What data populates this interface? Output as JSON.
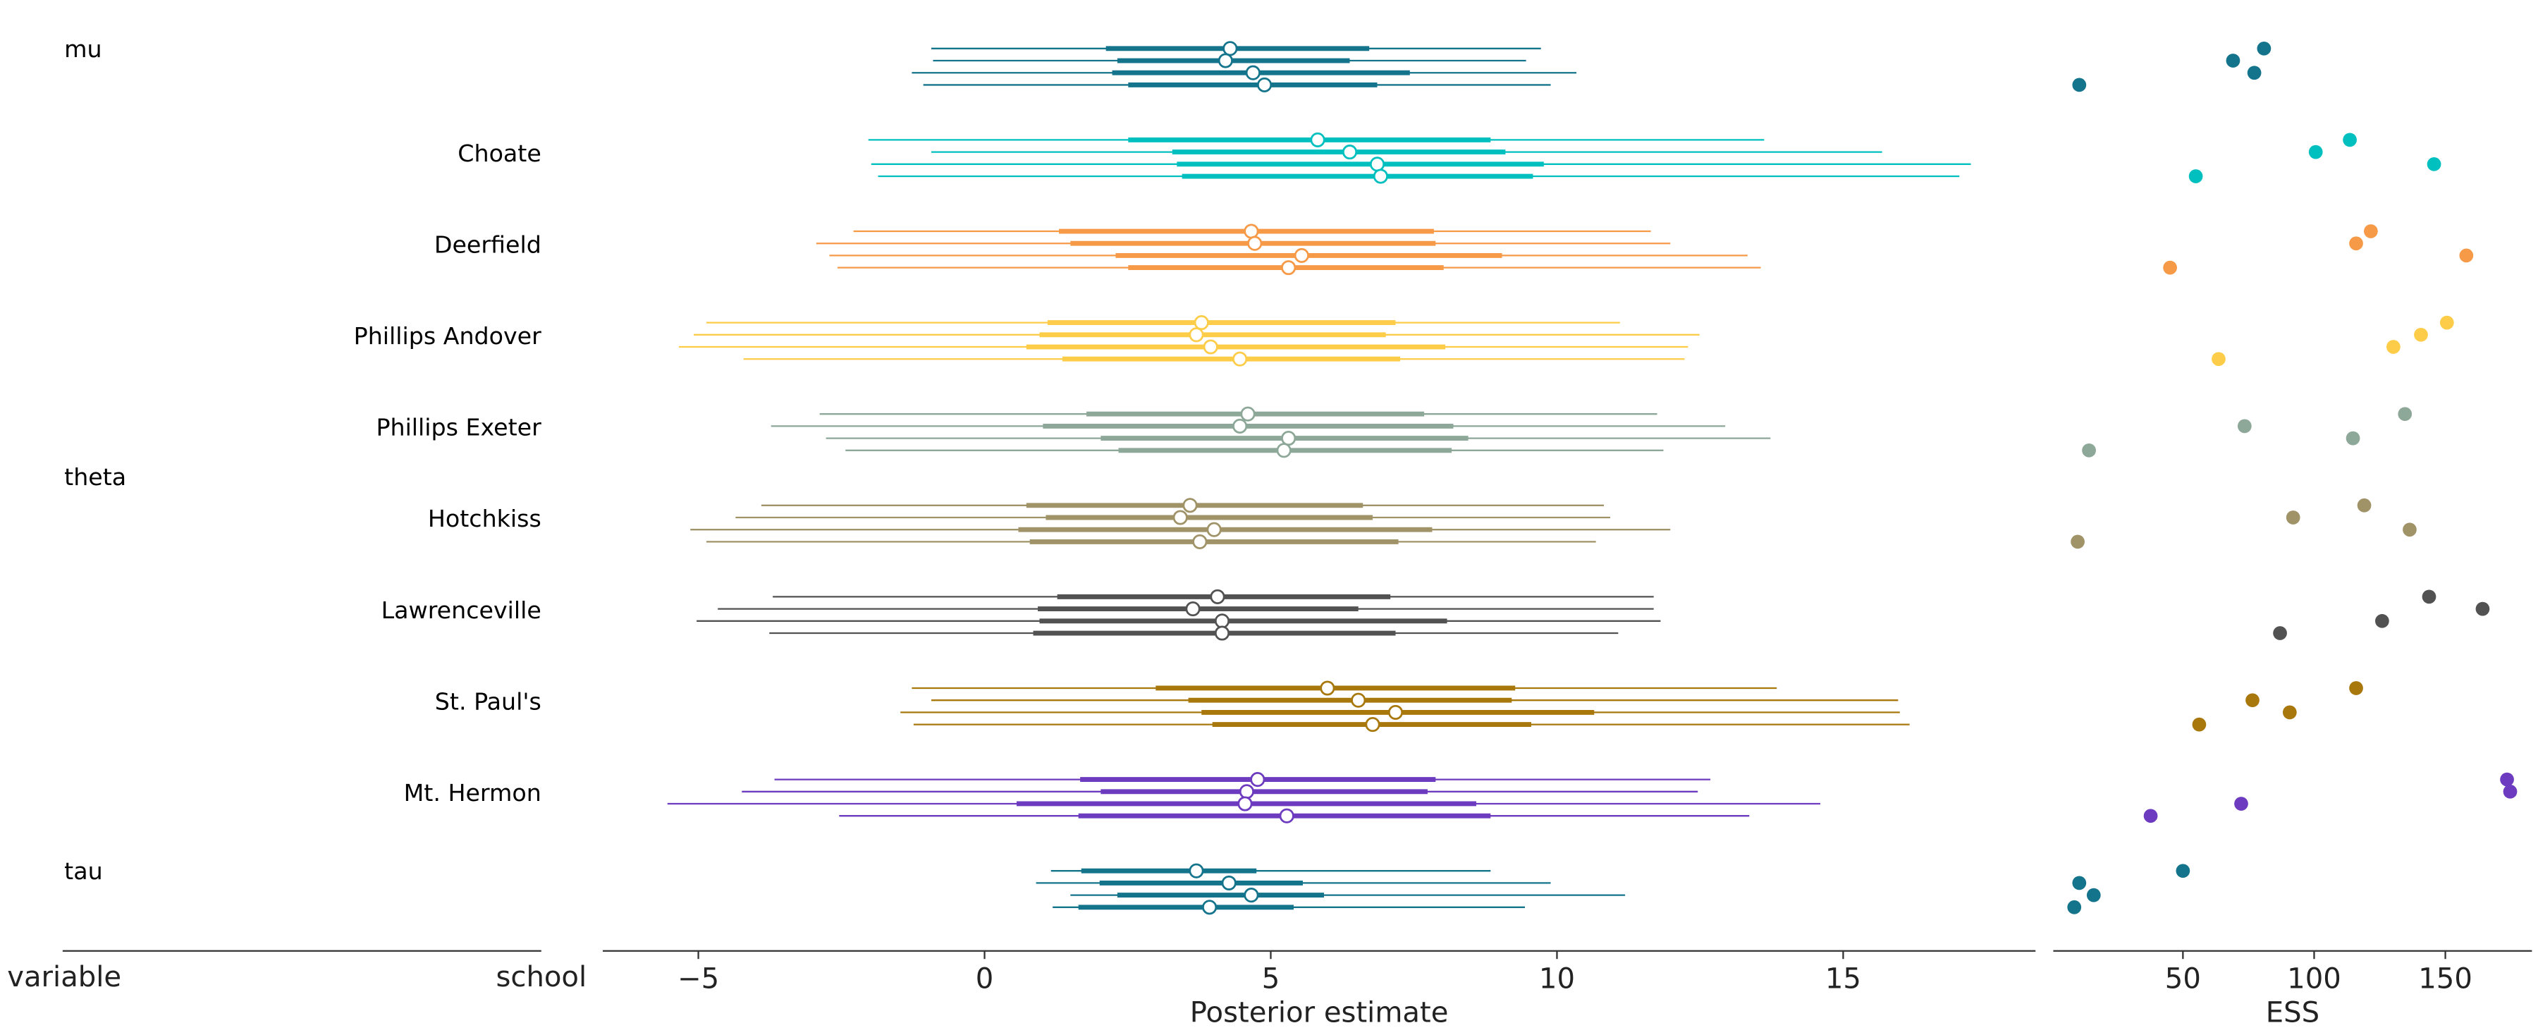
{
  "chart_data": {
    "type": "forest",
    "xlabel": "Posterior estimate",
    "ess_xlabel": "ESS",
    "label_headers": [
      "variable",
      "school"
    ],
    "xlim": [
      -6.67,
      18.36
    ],
    "xticks": [
      -5,
      0,
      5,
      10,
      15
    ],
    "ess_xlim": [
      0.6,
      183
    ],
    "ess_xticks": [
      50,
      100,
      150
    ],
    "grid": false,
    "groups": [
      {
        "variable": "mu",
        "school": "",
        "color": "#14748c",
        "chains": [
          {
            "hdi_low": -0.93,
            "iqr_low": 2.12,
            "median": 4.29,
            "iqr_high": 6.72,
            "hdi_high": 9.72,
            "ess": 80.9
          },
          {
            "hdi_low": -0.9,
            "iqr_low": 2.32,
            "median": 4.21,
            "iqr_high": 6.38,
            "hdi_high": 9.46,
            "ess": 69.1
          },
          {
            "hdi_low": -1.27,
            "iqr_low": 2.23,
            "median": 4.69,
            "iqr_high": 7.43,
            "hdi_high": 10.34,
            "ess": 77.2
          },
          {
            "hdi_low": -1.07,
            "iqr_low": 2.51,
            "median": 4.89,
            "iqr_high": 6.86,
            "hdi_high": 9.89,
            "ess": 10.5
          }
        ]
      },
      {
        "variable": "",
        "school": "Choate",
        "color": "#00bfbf",
        "chains": [
          {
            "hdi_low": -2.03,
            "iqr_low": 2.51,
            "median": 5.82,
            "iqr_high": 8.84,
            "hdi_high": 13.62,
            "ess": 113.6
          },
          {
            "hdi_low": -0.93,
            "iqr_low": 3.28,
            "median": 6.38,
            "iqr_high": 9.1,
            "hdi_high": 15.68,
            "ess": 100.6
          },
          {
            "hdi_low": -1.98,
            "iqr_low": 3.36,
            "median": 6.86,
            "iqr_high": 9.77,
            "hdi_high": 17.23,
            "ess": 145.7
          },
          {
            "hdi_low": -1.86,
            "iqr_low": 3.45,
            "median": 6.92,
            "iqr_high": 9.58,
            "hdi_high": 17.03,
            "ess": 54.9
          }
        ]
      },
      {
        "variable": "",
        "school": "Deerfield",
        "color": "#f69a48",
        "chains": [
          {
            "hdi_low": -2.29,
            "iqr_low": 1.3,
            "median": 4.66,
            "iqr_high": 7.85,
            "hdi_high": 11.64,
            "ess": 121.6
          },
          {
            "hdi_low": -2.94,
            "iqr_low": 1.5,
            "median": 4.72,
            "iqr_high": 7.88,
            "hdi_high": 11.98,
            "ess": 116.0
          },
          {
            "hdi_low": -2.71,
            "iqr_low": 2.29,
            "median": 5.54,
            "iqr_high": 9.04,
            "hdi_high": 13.33,
            "ess": 158.0
          },
          {
            "hdi_low": -2.57,
            "iqr_low": 2.51,
            "median": 5.31,
            "iqr_high": 8.02,
            "hdi_high": 13.56,
            "ess": 45.1
          }
        ]
      },
      {
        "variable": "",
        "school": "Phillips Andover",
        "color": "#fdcd49",
        "chains": [
          {
            "hdi_low": -4.86,
            "iqr_low": 1.1,
            "median": 3.79,
            "iqr_high": 7.18,
            "hdi_high": 11.1,
            "ess": 150.6
          },
          {
            "hdi_low": -5.08,
            "iqr_low": 0.96,
            "median": 3.7,
            "iqr_high": 7.01,
            "hdi_high": 12.49,
            "ess": 140.7
          },
          {
            "hdi_low": -5.34,
            "iqr_low": 0.73,
            "median": 3.95,
            "iqr_high": 8.05,
            "hdi_high": 12.29,
            "ess": 130.2
          },
          {
            "hdi_low": -4.21,
            "iqr_low": 1.36,
            "median": 4.46,
            "iqr_high": 7.26,
            "hdi_high": 12.23,
            "ess": 63.6
          }
        ]
      },
      {
        "variable": "theta",
        "school": "Phillips Exeter",
        "color": "#8da798",
        "chains": [
          {
            "hdi_low": -2.88,
            "iqr_low": 1.78,
            "median": 4.6,
            "iqr_high": 7.68,
            "hdi_high": 11.75,
            "ess": 134.6
          },
          {
            "hdi_low": -3.73,
            "iqr_low": 1.02,
            "median": 4.46,
            "iqr_high": 8.19,
            "hdi_high": 12.94,
            "ess": 73.5
          },
          {
            "hdi_low": -2.77,
            "iqr_low": 2.03,
            "median": 5.31,
            "iqr_high": 8.45,
            "hdi_high": 13.73,
            "ess": 114.8
          },
          {
            "hdi_low": -2.43,
            "iqr_low": 2.34,
            "median": 5.23,
            "iqr_high": 8.16,
            "hdi_high": 11.86,
            "ess": 14.2
          }
        ]
      },
      {
        "variable": "",
        "school": "Hotchkiss",
        "color": "#a19368",
        "chains": [
          {
            "hdi_low": -3.9,
            "iqr_low": 0.73,
            "median": 3.59,
            "iqr_high": 6.61,
            "hdi_high": 10.82,
            "ess": 119.1
          },
          {
            "hdi_low": -4.35,
            "iqr_low": 1.07,
            "median": 3.42,
            "iqr_high": 6.78,
            "hdi_high": 10.93,
            "ess": 92.0
          },
          {
            "hdi_low": -5.14,
            "iqr_low": 0.59,
            "median": 4.01,
            "iqr_high": 7.82,
            "hdi_high": 11.98,
            "ess": 136.4
          },
          {
            "hdi_low": -4.86,
            "iqr_low": 0.79,
            "median": 3.76,
            "iqr_high": 7.23,
            "hdi_high": 10.68,
            "ess": 9.9
          }
        ]
      },
      {
        "variable": "",
        "school": "Lawrenceville",
        "color": "#525252",
        "chains": [
          {
            "hdi_low": -3.7,
            "iqr_low": 1.27,
            "median": 4.07,
            "iqr_high": 7.09,
            "hdi_high": 11.69,
            "ess": 143.8
          },
          {
            "hdi_low": -4.66,
            "iqr_low": 0.93,
            "median": 3.64,
            "iqr_high": 6.53,
            "hdi_high": 11.69,
            "ess": 164.2
          },
          {
            "hdi_low": -5.03,
            "iqr_low": 0.96,
            "median": 4.15,
            "iqr_high": 8.08,
            "hdi_high": 11.81,
            "ess": 125.9
          },
          {
            "hdi_low": -3.76,
            "iqr_low": 0.85,
            "median": 4.15,
            "iqr_high": 7.18,
            "hdi_high": 11.07,
            "ess": 87.0
          }
        ]
      },
      {
        "variable": "",
        "school": "St. Paul's",
        "color": "#a8780d",
        "chains": [
          {
            "hdi_low": -1.27,
            "iqr_low": 2.99,
            "median": 5.99,
            "iqr_high": 9.27,
            "hdi_high": 13.84,
            "ess": 116.0
          },
          {
            "hdi_low": -0.93,
            "iqr_low": 3.56,
            "median": 6.53,
            "iqr_high": 9.21,
            "hdi_high": 15.96,
            "ess": 76.5
          },
          {
            "hdi_low": -1.47,
            "iqr_low": 3.79,
            "median": 7.18,
            "iqr_high": 10.65,
            "hdi_high": 15.99,
            "ess": 90.7
          },
          {
            "hdi_low": -1.24,
            "iqr_low": 3.98,
            "median": 6.78,
            "iqr_high": 9.55,
            "hdi_high": 16.16,
            "ess": 56.2
          }
        ]
      },
      {
        "variable": "",
        "school": "Mt. Hermon",
        "color": "#6d3bbf",
        "chains": [
          {
            "hdi_low": -3.67,
            "iqr_low": 1.67,
            "median": 4.77,
            "iqr_high": 7.88,
            "hdi_high": 12.68,
            "ess": 173.5
          },
          {
            "hdi_low": -4.24,
            "iqr_low": 2.03,
            "median": 4.58,
            "iqr_high": 7.74,
            "hdi_high": 12.46,
            "ess": 174.7
          },
          {
            "hdi_low": -5.54,
            "iqr_low": 0.56,
            "median": 4.55,
            "iqr_high": 8.59,
            "hdi_high": 14.6,
            "ess": 72.2
          },
          {
            "hdi_low": -2.54,
            "iqr_low": 1.64,
            "median": 5.28,
            "iqr_high": 8.84,
            "hdi_high": 13.36,
            "ess": 37.7
          }
        ]
      },
      {
        "variable": "tau",
        "school": "",
        "color": "#14748c",
        "chains": [
          {
            "hdi_low": 1.16,
            "iqr_low": 1.69,
            "median": 3.7,
            "iqr_high": 4.75,
            "hdi_high": 8.84,
            "ess": 50.0
          },
          {
            "hdi_low": 0.9,
            "iqr_low": 2.01,
            "median": 4.27,
            "iqr_high": 5.56,
            "hdi_high": 9.89,
            "ess": 10.5
          },
          {
            "hdi_low": 1.5,
            "iqr_low": 2.32,
            "median": 4.66,
            "iqr_high": 5.93,
            "hdi_high": 11.19,
            "ess": 16.0
          },
          {
            "hdi_low": 1.19,
            "iqr_low": 1.64,
            "median": 3.93,
            "iqr_high": 5.4,
            "hdi_high": 9.44,
            "ess": 8.6
          }
        ]
      }
    ]
  }
}
